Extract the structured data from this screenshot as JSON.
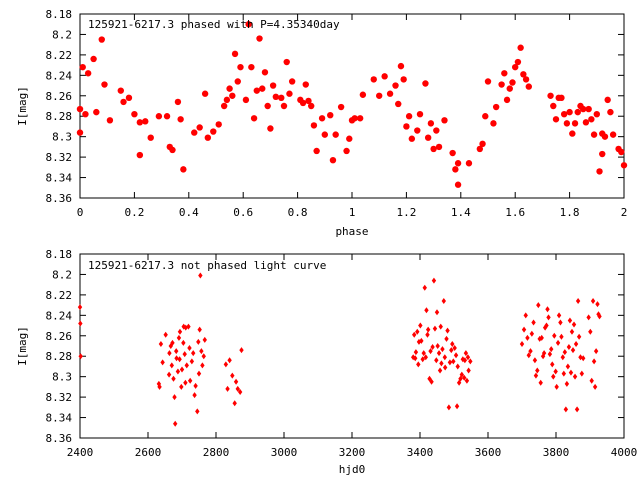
{
  "chart_data": [
    {
      "type": "scatter",
      "title": "125921-6217.3 phased with P=4.35340day",
      "xlabel": "phase",
      "ylabel": "I[mag]",
      "xlim": [
        0,
        2
      ],
      "ylim": [
        8.18,
        8.36
      ],
      "y_inverted": true,
      "marker": "filled-circle-large",
      "color": "#ff0000",
      "xticks": [
        "0",
        "0.2",
        "0.4",
        "0.6",
        "0.8",
        "1",
        "1.2",
        "1.4",
        "1.6",
        "1.8",
        "2"
      ],
      "yticks": [
        "8.18",
        "8.2",
        "8.22",
        "8.24",
        "8.26",
        "8.28",
        "8.3",
        "8.32",
        "8.34",
        "8.36"
      ],
      "points": [
        [
          0.0,
          8.273
        ],
        [
          0.0,
          8.296
        ],
        [
          0.01,
          8.232
        ],
        [
          0.02,
          8.278
        ],
        [
          0.03,
          8.238
        ],
        [
          0.05,
          8.224
        ],
        [
          0.06,
          8.276
        ],
        [
          0.08,
          8.205
        ],
        [
          0.09,
          8.249
        ],
        [
          0.11,
          8.284
        ],
        [
          0.15,
          8.255
        ],
        [
          0.16,
          8.266
        ],
        [
          0.18,
          8.262
        ],
        [
          0.2,
          8.278
        ],
        [
          0.22,
          8.286
        ],
        [
          0.22,
          8.318
        ],
        [
          0.24,
          8.285
        ],
        [
          0.26,
          8.301
        ],
        [
          0.29,
          8.28
        ],
        [
          0.32,
          8.28
        ],
        [
          0.33,
          8.31
        ],
        [
          0.34,
          8.313
        ],
        [
          0.36,
          8.266
        ],
        [
          0.37,
          8.283
        ],
        [
          0.38,
          8.332
        ],
        [
          0.42,
          8.296
        ],
        [
          0.44,
          8.291
        ],
        [
          0.46,
          8.258
        ],
        [
          0.47,
          8.301
        ],
        [
          0.49,
          8.295
        ],
        [
          0.51,
          8.288
        ],
        [
          0.53,
          8.27
        ],
        [
          0.54,
          8.264
        ],
        [
          0.55,
          8.253
        ],
        [
          0.56,
          8.26
        ],
        [
          0.57,
          8.219
        ],
        [
          0.58,
          8.246
        ],
        [
          0.59,
          8.232
        ],
        [
          0.61,
          8.264
        ],
        [
          0.62,
          8.19
        ],
        [
          0.63,
          8.232
        ],
        [
          0.64,
          8.282
        ],
        [
          0.65,
          8.255
        ],
        [
          0.66,
          8.204
        ],
        [
          0.67,
          8.253
        ],
        [
          0.68,
          8.237
        ],
        [
          0.69,
          8.27
        ],
        [
          0.7,
          8.292
        ],
        [
          0.71,
          8.25
        ],
        [
          0.72,
          8.261
        ],
        [
          0.74,
          8.262
        ],
        [
          0.75,
          8.27
        ],
        [
          0.76,
          8.227
        ],
        [
          0.77,
          8.258
        ],
        [
          0.78,
          8.246
        ],
        [
          0.81,
          8.264
        ],
        [
          0.82,
          8.267
        ],
        [
          0.83,
          8.249
        ],
        [
          0.84,
          8.265
        ],
        [
          0.85,
          8.27
        ],
        [
          0.86,
          8.289
        ],
        [
          0.87,
          8.314
        ],
        [
          0.89,
          8.282
        ],
        [
          0.9,
          8.298
        ],
        [
          0.92,
          8.279
        ],
        [
          0.93,
          8.323
        ],
        [
          0.94,
          8.298
        ],
        [
          0.96,
          8.271
        ],
        [
          0.98,
          8.314
        ],
        [
          0.99,
          8.302
        ],
        [
          1.0,
          8.284
        ],
        [
          1.01,
          8.282
        ],
        [
          1.03,
          8.282
        ],
        [
          1.04,
          8.259
        ],
        [
          1.08,
          8.244
        ],
        [
          1.1,
          8.26
        ],
        [
          1.12,
          8.241
        ],
        [
          1.14,
          8.258
        ],
        [
          1.16,
          8.25
        ],
        [
          1.17,
          8.268
        ],
        [
          1.18,
          8.231
        ],
        [
          1.19,
          8.244
        ],
        [
          1.2,
          8.29
        ],
        [
          1.21,
          8.28
        ],
        [
          1.22,
          8.302
        ],
        [
          1.24,
          8.294
        ],
        [
          1.25,
          8.278
        ],
        [
          1.27,
          8.248
        ],
        [
          1.28,
          8.301
        ],
        [
          1.29,
          8.287
        ],
        [
          1.3,
          8.312
        ],
        [
          1.31,
          8.294
        ],
        [
          1.32,
          8.31
        ],
        [
          1.34,
          8.284
        ],
        [
          1.37,
          8.316
        ],
        [
          1.38,
          8.332
        ],
        [
          1.39,
          8.326
        ],
        [
          1.39,
          8.347
        ],
        [
          1.43,
          8.326
        ],
        [
          1.47,
          8.312
        ],
        [
          1.48,
          8.307
        ],
        [
          1.49,
          8.28
        ],
        [
          1.5,
          8.246
        ],
        [
          1.52,
          8.287
        ],
        [
          1.53,
          8.271
        ],
        [
          1.55,
          8.249
        ],
        [
          1.56,
          8.238
        ],
        [
          1.57,
          8.264
        ],
        [
          1.58,
          8.253
        ],
        [
          1.59,
          8.247
        ],
        [
          1.6,
          8.232
        ],
        [
          1.61,
          8.227
        ],
        [
          1.62,
          8.213
        ],
        [
          1.63,
          8.239
        ],
        [
          1.64,
          8.244
        ],
        [
          1.65,
          8.251
        ],
        [
          1.73,
          8.26
        ],
        [
          1.74,
          8.27
        ],
        [
          1.75,
          8.283
        ],
        [
          1.76,
          8.262
        ],
        [
          1.77,
          8.262
        ],
        [
          1.78,
          8.278
        ],
        [
          1.79,
          8.287
        ],
        [
          1.8,
          8.276
        ],
        [
          1.81,
          8.297
        ],
        [
          1.82,
          8.287
        ],
        [
          1.83,
          8.276
        ],
        [
          1.84,
          8.27
        ],
        [
          1.85,
          8.273
        ],
        [
          1.86,
          8.286
        ],
        [
          1.87,
          8.273
        ],
        [
          1.88,
          8.283
        ],
        [
          1.89,
          8.298
        ],
        [
          1.9,
          8.278
        ],
        [
          1.91,
          8.334
        ],
        [
          1.92,
          8.297
        ],
        [
          1.92,
          8.317
        ],
        [
          1.93,
          8.3
        ],
        [
          1.94,
          8.264
        ],
        [
          1.95,
          8.276
        ],
        [
          1.96,
          8.298
        ],
        [
          1.98,
          8.312
        ],
        [
          1.99,
          8.315
        ],
        [
          2.0,
          8.328
        ]
      ]
    },
    {
      "type": "scatter",
      "title": "125921-6217.3 not phased light curve",
      "xlabel": "hjd0",
      "ylabel": "I[mag]",
      "xlim": [
        2400,
        4000
      ],
      "ylim": [
        8.18,
        8.36
      ],
      "y_inverted": true,
      "marker": "filled-diamond-small",
      "color": "#ff0000",
      "xticks": [
        "2400",
        "2600",
        "2800",
        "3000",
        "3200",
        "3400",
        "3600",
        "3800",
        "4000"
      ],
      "yticks": [
        "8.18",
        "8.2",
        "8.22",
        "8.24",
        "8.26",
        "8.28",
        "8.3",
        "8.32",
        "8.34",
        "8.36"
      ],
      "points": [
        [
          2400,
          8.232
        ],
        [
          2401,
          8.248
        ],
        [
          2402,
          8.28
        ],
        [
          2632,
          8.307
        ],
        [
          2634,
          8.31
        ],
        [
          2638,
          8.268
        ],
        [
          2643,
          8.286
        ],
        [
          2652,
          8.259
        ],
        [
          2662,
          8.298
        ],
        [
          2663,
          8.277
        ],
        [
          2667,
          8.27
        ],
        [
          2670,
          8.289
        ],
        [
          2672,
          8.267
        ],
        [
          2675,
          8.302
        ],
        [
          2678,
          8.32
        ],
        [
          2680,
          8.346
        ],
        [
          2683,
          8.275
        ],
        [
          2684,
          8.282
        ],
        [
          2688,
          8.295
        ],
        [
          2691,
          8.262
        ],
        [
          2693,
          8.283
        ],
        [
          2694,
          8.256
        ],
        [
          2698,
          8.31
        ],
        [
          2700,
          8.293
        ],
        [
          2704,
          8.267
        ],
        [
          2705,
          8.251
        ],
        [
          2708,
          8.278
        ],
        [
          2710,
          8.306
        ],
        [
          2711,
          8.252
        ],
        [
          2714,
          8.289
        ],
        [
          2719,
          8.251
        ],
        [
          2722,
          8.272
        ],
        [
          2724,
          8.304
        ],
        [
          2729,
          8.285
        ],
        [
          2733,
          8.277
        ],
        [
          2737,
          8.318
        ],
        [
          2740,
          8.309
        ],
        [
          2745,
          8.334
        ],
        [
          2748,
          8.266
        ],
        [
          2750,
          8.297
        ],
        [
          2752,
          8.254
        ],
        [
          2754,
          8.201
        ],
        [
          2757,
          8.275
        ],
        [
          2760,
          8.289
        ],
        [
          2764,
          8.28
        ],
        [
          2767,
          8.264
        ],
        [
          2829,
          8.288
        ],
        [
          2834,
          8.312
        ],
        [
          2840,
          8.284
        ],
        [
          2848,
          8.299
        ],
        [
          2855,
          8.326
        ],
        [
          2859,
          8.305
        ],
        [
          2864,
          8.312
        ],
        [
          2871,
          8.315
        ],
        [
          2875,
          8.274
        ],
        [
          3380,
          8.281
        ],
        [
          3383,
          8.259
        ],
        [
          3386,
          8.282
        ],
        [
          3388,
          8.276
        ],
        [
          3392,
          8.256
        ],
        [
          3395,
          8.288
        ],
        [
          3397,
          8.266
        ],
        [
          3401,
          8.25
        ],
        [
          3404,
          8.265
        ],
        [
          3408,
          8.283
        ],
        [
          3411,
          8.277
        ],
        [
          3414,
          8.213
        ],
        [
          3417,
          8.281
        ],
        [
          3419,
          8.235
        ],
        [
          3422,
          8.259
        ],
        [
          3424,
          8.254
        ],
        [
          3428,
          8.302
        ],
        [
          3431,
          8.275
        ],
        [
          3434,
          8.305
        ],
        [
          3437,
          8.271
        ],
        [
          3441,
          8.206
        ],
        [
          3444,
          8.253
        ],
        [
          3448,
          8.284
        ],
        [
          3450,
          8.237
        ],
        [
          3452,
          8.27
        ],
        [
          3456,
          8.277
        ],
        [
          3459,
          8.294
        ],
        [
          3461,
          8.251
        ],
        [
          3463,
          8.287
        ],
        [
          3466,
          8.273
        ],
        [
          3470,
          8.226
        ],
        [
          3473,
          8.281
        ],
        [
          3474,
          8.291
        ],
        [
          3478,
          8.263
        ],
        [
          3481,
          8.255
        ],
        [
          3485,
          8.33
        ],
        [
          3488,
          8.286
        ],
        [
          3492,
          8.274
        ],
        [
          3495,
          8.268
        ],
        [
          3498,
          8.285
        ],
        [
          3502,
          8.272
        ],
        [
          3506,
          8.279
        ],
        [
          3509,
          8.329
        ],
        [
          3511,
          8.29
        ],
        [
          3515,
          8.306
        ],
        [
          3519,
          8.302
        ],
        [
          3523,
          8.298
        ],
        [
          3526,
          8.283
        ],
        [
          3530,
          8.301
        ],
        [
          3532,
          8.284
        ],
        [
          3535,
          8.277
        ],
        [
          3538,
          8.304
        ],
        [
          3541,
          8.281
        ],
        [
          3543,
          8.294
        ],
        [
          3548,
          8.285
        ],
        [
          3700,
          8.268
        ],
        [
          3706,
          8.254
        ],
        [
          3711,
          8.24
        ],
        [
          3716,
          8.262
        ],
        [
          3720,
          8.279
        ],
        [
          3725,
          8.275
        ],
        [
          3729,
          8.258
        ],
        [
          3734,
          8.247
        ],
        [
          3738,
          8.284
        ],
        [
          3741,
          8.299
        ],
        [
          3745,
          8.294
        ],
        [
          3748,
          8.23
        ],
        [
          3752,
          8.263
        ],
        [
          3755,
          8.306
        ],
        [
          3758,
          8.262
        ],
        [
          3762,
          8.28
        ],
        [
          3765,
          8.277
        ],
        [
          3768,
          8.252
        ],
        [
          3772,
          8.25
        ],
        [
          3775,
          8.234
        ],
        [
          3778,
          8.242
        ],
        [
          3782,
          8.278
        ],
        [
          3786,
          8.273
        ],
        [
          3789,
          8.288
        ],
        [
          3792,
          8.3
        ],
        [
          3795,
          8.26
        ],
        [
          3799,
          8.295
        ],
        [
          3802,
          8.31
        ],
        [
          3806,
          8.267
        ],
        [
          3809,
          8.24
        ],
        [
          3813,
          8.247
        ],
        [
          3816,
          8.261
        ],
        [
          3820,
          8.281
        ],
        [
          3823,
          8.297
        ],
        [
          3826,
          8.276
        ],
        [
          3829,
          8.332
        ],
        [
          3832,
          8.307
        ],
        [
          3835,
          8.29
        ],
        [
          3838,
          8.271
        ],
        [
          3841,
          8.245
        ],
        [
          3844,
          8.296
        ],
        [
          3847,
          8.256
        ],
        [
          3850,
          8.274
        ],
        [
          3853,
          8.249
        ],
        [
          3856,
          8.3
        ],
        [
          3859,
          8.268
        ],
        [
          3862,
          8.332
        ],
        [
          3865,
          8.226
        ],
        [
          3868,
          8.261
        ],
        [
          3872,
          8.281
        ],
        [
          3876,
          8.297
        ],
        [
          3880,
          8.282
        ],
        [
          3896,
          8.242
        ],
        [
          3901,
          8.256
        ],
        [
          3905,
          8.304
        ],
        [
          3909,
          8.226
        ],
        [
          3912,
          8.285
        ],
        [
          3915,
          8.31
        ],
        [
          3918,
          8.275
        ],
        [
          3922,
          8.229
        ],
        [
          3925,
          8.239
        ],
        [
          3928,
          8.241
        ]
      ]
    }
  ]
}
